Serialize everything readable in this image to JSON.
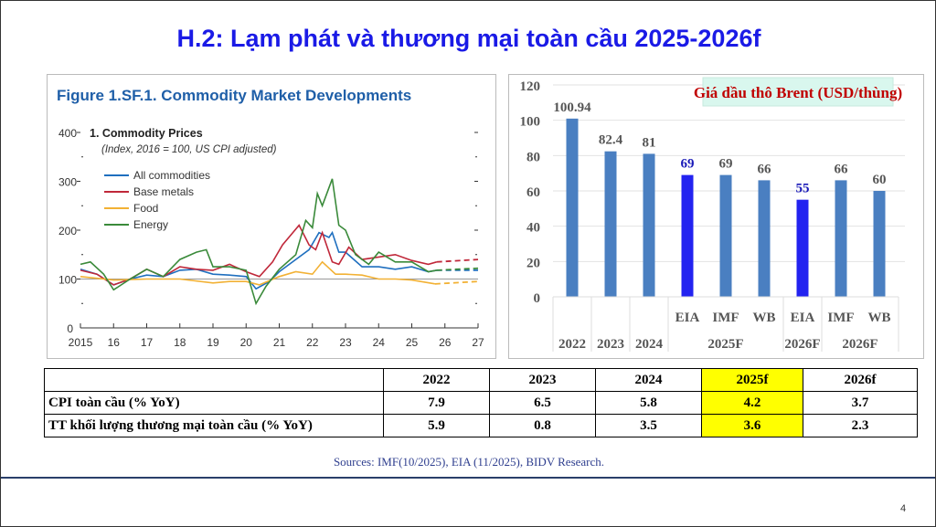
{
  "title": "H.2: Lạm phát và thương mại toàn cầu 2025-2026f",
  "chart_data": [
    {
      "type": "line",
      "title": "Figure 1.SF.1.  Commodity Market Developments",
      "subtitle": "1. Commodity Prices",
      "note": "(Index, 2016 = 100, US CPI adjusted)",
      "xlim": [
        2015,
        2027
      ],
      "ylim": [
        0,
        400
      ],
      "x_tick_labels": [
        "2015",
        "16",
        "17",
        "18",
        "19",
        "20",
        "21",
        "22",
        "23",
        "24",
        "25",
        "26",
        "27"
      ],
      "y_tick_labels": [
        "0",
        "100",
        "200",
        "300",
        "400"
      ],
      "reference_line": 100,
      "legend_position": "top-left",
      "series": [
        {
          "name": "All commodities",
          "color": "#1f6fbf",
          "x": [
            2015,
            2015.5,
            2016,
            2016.5,
            2017,
            2017.5,
            2018,
            2018.5,
            2019,
            2019.5,
            2020,
            2020.3,
            2020.7,
            2021,
            2021.5,
            2021.9,
            2022.2,
            2022.5,
            2022.6,
            2022.8,
            2023,
            2023.5,
            2024,
            2024.5,
            2025,
            2025.5,
            2025.75
          ],
          "y": [
            120,
            110,
            88,
            100,
            108,
            105,
            118,
            120,
            110,
            108,
            105,
            80,
            95,
            115,
            140,
            160,
            195,
            185,
            195,
            155,
            155,
            125,
            125,
            120,
            125,
            115,
            118
          ],
          "forecast": {
            "x": [
              2025.75,
              2027
            ],
            "y": [
              118,
              118
            ]
          }
        },
        {
          "name": "Base metals",
          "color": "#c0283a",
          "x": [
            2015,
            2015.5,
            2016,
            2016.5,
            2017,
            2017.5,
            2018,
            2018.5,
            2019,
            2019.5,
            2020,
            2020.4,
            2020.8,
            2021.1,
            2021.6,
            2021.9,
            2022.1,
            2022.3,
            2022.6,
            2022.8,
            2023.1,
            2023.5,
            2024,
            2024.5,
            2025,
            2025.5,
            2025.75
          ],
          "y": [
            118,
            110,
            88,
            100,
            120,
            105,
            125,
            120,
            118,
            130,
            115,
            105,
            135,
            170,
            210,
            170,
            160,
            195,
            135,
            130,
            165,
            140,
            145,
            150,
            138,
            130,
            135
          ],
          "forecast": {
            "x": [
              2025.75,
              2027
            ],
            "y": [
              135,
              140
            ]
          }
        },
        {
          "name": "Food",
          "color": "#f2b134",
          "x": [
            2015,
            2016,
            2017,
            2018,
            2019,
            2019.5,
            2020,
            2020.4,
            2021,
            2021.5,
            2022,
            2022.3,
            2022.7,
            2023,
            2023.5,
            2024,
            2024.5,
            2025,
            2025.7
          ],
          "y": [
            105,
            98,
            100,
            100,
            92,
            95,
            95,
            88,
            105,
            115,
            110,
            135,
            110,
            110,
            108,
            100,
            100,
            98,
            90
          ],
          "forecast": {
            "x": [
              2025.7,
              2027
            ],
            "y": [
              90,
              95
            ]
          }
        },
        {
          "name": "Energy",
          "color": "#3a8a3a",
          "x": [
            2015,
            2015.3,
            2015.7,
            2016,
            2016.5,
            2017,
            2017.5,
            2018,
            2018.5,
            2018.8,
            2019,
            2019.5,
            2020,
            2020.3,
            2020.6,
            2021,
            2021.5,
            2021.8,
            2022,
            2022.15,
            2022.3,
            2022.6,
            2022.8,
            2023,
            2023.3,
            2023.7,
            2024,
            2024.5,
            2025,
            2025.5,
            2025.75
          ],
          "y": [
            130,
            135,
            110,
            78,
            100,
            120,
            105,
            140,
            155,
            160,
            125,
            125,
            118,
            50,
            85,
            120,
            150,
            220,
            205,
            275,
            250,
            305,
            210,
            200,
            150,
            130,
            155,
            135,
            135,
            115,
            118
          ],
          "forecast": {
            "x": [
              2025.75,
              2027
            ],
            "y": [
              118,
              122
            ]
          }
        }
      ]
    },
    {
      "type": "bar",
      "title": "Giá dầu thô Brent (USD/thùng)",
      "ylim": [
        0,
        120
      ],
      "y_tick_labels": [
        "0",
        "20",
        "40",
        "60",
        "80",
        "100",
        "120"
      ],
      "categories": [
        "2022",
        "2023",
        "2024",
        "EIA",
        "IMF",
        "WB",
        "EIA",
        "IMF",
        "WB"
      ],
      "groups": [
        {
          "label": "2022",
          "span": 1
        },
        {
          "label": "2023",
          "span": 1
        },
        {
          "label": "2024",
          "span": 1
        },
        {
          "label": "2025F",
          "span": 3
        },
        {
          "label": "2026F",
          "span": 1
        },
        {
          "label": "2026F",
          "span": 2
        }
      ],
      "values": [
        100.94,
        82.4,
        81,
        69,
        69,
        66,
        55,
        66,
        60
      ],
      "value_labels": [
        "100.94",
        "82.4",
        "81",
        "69",
        "69",
        "66",
        "55",
        "66",
        "60"
      ],
      "highlighted": [
        false,
        false,
        false,
        true,
        false,
        false,
        true,
        false,
        false
      ],
      "bar_color": "#4a7fc1",
      "highlight_color": "#2323f0",
      "label_color": "#555555",
      "highlight_label_color": "#1a1ab8"
    }
  ],
  "table": {
    "headers": [
      "",
      "2022",
      "2023",
      "2024",
      "2025f",
      "2026f"
    ],
    "rows": [
      [
        "CPI toàn cầu (% YoY)",
        "7.9",
        "6.5",
        "5.8",
        "4.2",
        "3.7"
      ],
      [
        "TT khối lượng thương mại toàn cầu (% YoY)",
        "5.9",
        "0.8",
        "3.5",
        "3.6",
        "2.3"
      ]
    ],
    "highlight_color": "#ffff00"
  },
  "sources": "Sources: IMF(10/2025), EIA (11/2025), BIDV Research.",
  "page_number": "4"
}
